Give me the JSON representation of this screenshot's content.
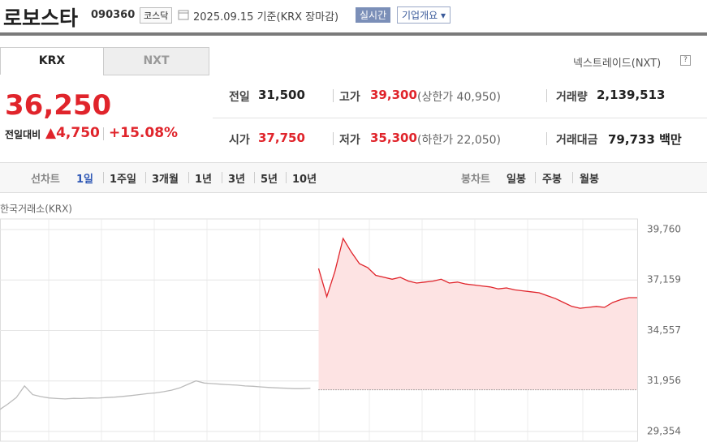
{
  "header": {
    "name": "로보스타",
    "code": "090360",
    "market": "코스닥",
    "date": "2025.09.15",
    "basis": "기준(KRX 장마감)",
    "realtime": "실시간",
    "company": "기업개요"
  },
  "tabs": [
    "KRX",
    "NXT"
  ],
  "nxt_link": "넥스트레이드(NXT)",
  "help": "?",
  "price": {
    "current": "36,250",
    "change_label": "전일대비",
    "change": "4,750",
    "rate": "+15.08%"
  },
  "stats": [
    [
      {
        "label": "전일",
        "value": "31,500"
      },
      {
        "label": "고가",
        "value": "39,300",
        "note": "(상한가 40,950)"
      },
      {
        "label": "거래량",
        "value": "2,139,513"
      }
    ],
    [
      {
        "label": "시가",
        "value": "37,750"
      },
      {
        "label": "저가",
        "value": "35,300",
        "note": "(하한가 22,050)"
      },
      {
        "label": "거래대금",
        "value": "79,733",
        "unit": "백만"
      }
    ]
  ],
  "periods": {
    "line_label": "선차트",
    "line": [
      "1일",
      "1주일",
      "3개월",
      "1년",
      "3년",
      "5년",
      "10년"
    ],
    "candle_label": "봉차트",
    "candle": [
      "일봉",
      "주봉",
      "월봉"
    ]
  },
  "chart_data": {
    "type": "line",
    "subtitle": "한국거래소(KRX)",
    "ylim": [
      29354,
      39760
    ],
    "yticks": [
      {
        "value": 39760,
        "label": "39,760"
      },
      {
        "value": 37159,
        "label": "37,159"
      },
      {
        "value": 34557,
        "label": "34,557"
      },
      {
        "value": 31956,
        "label": "31,956"
      },
      {
        "value": 29354,
        "label": "29,354"
      }
    ],
    "baseline": 31500,
    "grid": true,
    "series": [
      {
        "color": "#bbbbbb",
        "values": [
          30490,
          30780,
          31100,
          31700,
          31250,
          31150,
          31080,
          31050,
          31030,
          31060,
          31050,
          31080,
          31070,
          31100,
          31120,
          31160,
          31200,
          31250,
          31300,
          31340,
          31400,
          31480,
          31600,
          31780,
          31960,
          31850,
          31820,
          31790,
          31760,
          31740,
          31700,
          31680,
          31650,
          31620,
          31600,
          31580,
          31560,
          31560,
          31580,
          null,
          null,
          null,
          null,
          null,
          null,
          null,
          null,
          null,
          null,
          null,
          null,
          null,
          null,
          null,
          null,
          null,
          null,
          null,
          null,
          null,
          null,
          null,
          null,
          null,
          null,
          null,
          null,
          null,
          null,
          null,
          null,
          null,
          null,
          null,
          null,
          null,
          null,
          null,
          null
        ]
      },
      {
        "color": "#e0242b",
        "values": [
          null,
          null,
          null,
          null,
          null,
          null,
          null,
          null,
          null,
          null,
          null,
          null,
          null,
          null,
          null,
          null,
          null,
          null,
          null,
          null,
          null,
          null,
          null,
          null,
          null,
          null,
          null,
          null,
          null,
          null,
          null,
          null,
          null,
          null,
          null,
          null,
          null,
          null,
          null,
          37750,
          36300,
          37600,
          39300,
          38600,
          38000,
          37800,
          37400,
          37300,
          37200,
          37300,
          37100,
          37000,
          37050,
          37100,
          37200,
          37000,
          37050,
          36950,
          36900,
          36850,
          36800,
          36700,
          36750,
          36650,
          36600,
          36550,
          36500,
          36350,
          36200,
          36000,
          35800,
          35700,
          35750,
          35800,
          35750,
          36000,
          36150,
          36250,
          36250
        ]
      }
    ]
  }
}
